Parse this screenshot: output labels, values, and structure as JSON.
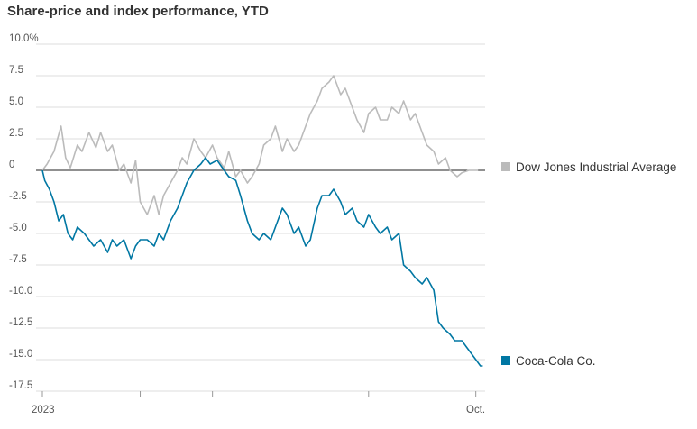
{
  "title": "Share-price and index performance, YTD",
  "chart_data": {
    "type": "line",
    "title": "Share-price and index performance, YTD",
    "xlabel": "",
    "ylabel": "",
    "x_tick_labels": [
      "2023",
      "Oct."
    ],
    "y_ticks": [
      {
        "value": 10,
        "label": "10.0%"
      },
      {
        "value": 7.5,
        "label": "7.5"
      },
      {
        "value": 5,
        "label": "5.0"
      },
      {
        "value": 2.5,
        "label": "2.5"
      },
      {
        "value": 0,
        "label": "0"
      },
      {
        "value": -2.5,
        "label": "-2.5"
      },
      {
        "value": -5,
        "label": "-5.0"
      },
      {
        "value": -7.5,
        "label": "-7.5"
      },
      {
        "value": -10,
        "label": "-10.0"
      },
      {
        "value": -12.5,
        "label": "-12.5"
      },
      {
        "value": -15,
        "label": "-15.0"
      },
      {
        "value": -17.5,
        "label": "-17.5"
      }
    ],
    "ylim": [
      -17.5,
      10
    ],
    "xlim": [
      0,
      190
    ],
    "x_ticks_days": [
      0,
      42,
      73,
      140,
      186
    ],
    "grid": true,
    "series": [
      {
        "name": "Dow Jones Industrial Average",
        "color": "#bbbbbb",
        "x": [
          0,
          2,
          5,
          8,
          10,
          12,
          15,
          17,
          20,
          23,
          25,
          28,
          30,
          33,
          35,
          38,
          40,
          42,
          45,
          48,
          50,
          52,
          55,
          58,
          60,
          62,
          65,
          68,
          70,
          73,
          75,
          78,
          80,
          83,
          85,
          88,
          90,
          93,
          95,
          98,
          100,
          103,
          105,
          108,
          110,
          113,
          115,
          118,
          120,
          123,
          125,
          128,
          130,
          133,
          135,
          138,
          140,
          143,
          145,
          148,
          150,
          153,
          155,
          158,
          160,
          163,
          165,
          168,
          170,
          173,
          175,
          178,
          180,
          183,
          185,
          187
        ],
        "values": [
          0,
          0.5,
          1.5,
          3.5,
          1.0,
          0.2,
          2.0,
          1.5,
          3.0,
          1.8,
          3.0,
          1.5,
          2.0,
          0,
          0.5,
          -1.0,
          0.8,
          -2.5,
          -3.5,
          -2.0,
          -3.5,
          -2.0,
          -1.0,
          0,
          1.0,
          0.5,
          2.5,
          1.5,
          1.0,
          2.0,
          1.0,
          0.2,
          1.5,
          -0.5,
          0,
          -1.0,
          -0.5,
          0.5,
          2.0,
          2.5,
          3.5,
          1.5,
          2.5,
          1.5,
          2.0,
          3.5,
          4.5,
          5.5,
          6.5,
          7.0,
          7.5,
          6.0,
          6.5,
          5.0,
          4.0,
          3.0,
          4.5,
          5.0,
          4.0,
          4.0,
          5.0,
          4.5,
          5.5,
          4.0,
          4.5,
          3.0,
          2.0,
          1.5,
          0.5,
          1.0,
          0.0,
          -0.5,
          -0.2,
          0,
          0,
          0
        ]
      },
      {
        "name": "Coca-Cola Co.",
        "color": "#0077a3",
        "x": [
          0,
          1,
          3,
          5,
          7,
          9,
          11,
          13,
          15,
          18,
          20,
          22,
          25,
          28,
          30,
          32,
          35,
          38,
          40,
          42,
          45,
          48,
          50,
          52,
          55,
          58,
          60,
          62,
          65,
          68,
          70,
          72,
          75,
          78,
          80,
          83,
          85,
          88,
          90,
          93,
          95,
          98,
          100,
          103,
          105,
          108,
          110,
          113,
          115,
          118,
          120,
          123,
          125,
          128,
          130,
          133,
          135,
          138,
          140,
          143,
          145,
          148,
          150,
          153,
          155,
          158,
          160,
          163,
          165,
          168,
          170,
          172,
          175,
          177,
          180,
          182,
          184,
          186,
          188,
          189
        ],
        "values": [
          0,
          -0.8,
          -1.5,
          -2.5,
          -4.0,
          -3.5,
          -5.0,
          -5.5,
          -4.5,
          -5.0,
          -5.5,
          -6.0,
          -5.5,
          -6.5,
          -5.5,
          -6.0,
          -5.5,
          -7.0,
          -6.0,
          -5.5,
          -5.5,
          -6.0,
          -5.0,
          -5.5,
          -4.0,
          -3.0,
          -2.0,
          -1.0,
          0.0,
          0.5,
          1.0,
          0.5,
          0.8,
          0.0,
          -0.5,
          -0.8,
          -2.0,
          -4.0,
          -5.0,
          -5.5,
          -5.0,
          -5.5,
          -4.5,
          -3.0,
          -3.5,
          -5.0,
          -4.5,
          -6.0,
          -5.5,
          -3.0,
          -2.0,
          -2.0,
          -1.5,
          -2.5,
          -3.5,
          -3.0,
          -4.0,
          -4.5,
          -3.5,
          -4.5,
          -5.0,
          -4.5,
          -5.5,
          -5.0,
          -7.5,
          -8.0,
          -8.5,
          -9.0,
          -8.5,
          -9.5,
          -12.0,
          -12.5,
          -13.0,
          -13.5,
          -13.5,
          -14.0,
          -14.5,
          -15.0,
          -15.5,
          -15.5
        ]
      }
    ]
  },
  "legend": [
    {
      "label": "Dow Jones Industrial Average",
      "color": "#bbbbbb"
    },
    {
      "label": "Coca-Cola Co.",
      "color": "#0077a3"
    }
  ]
}
